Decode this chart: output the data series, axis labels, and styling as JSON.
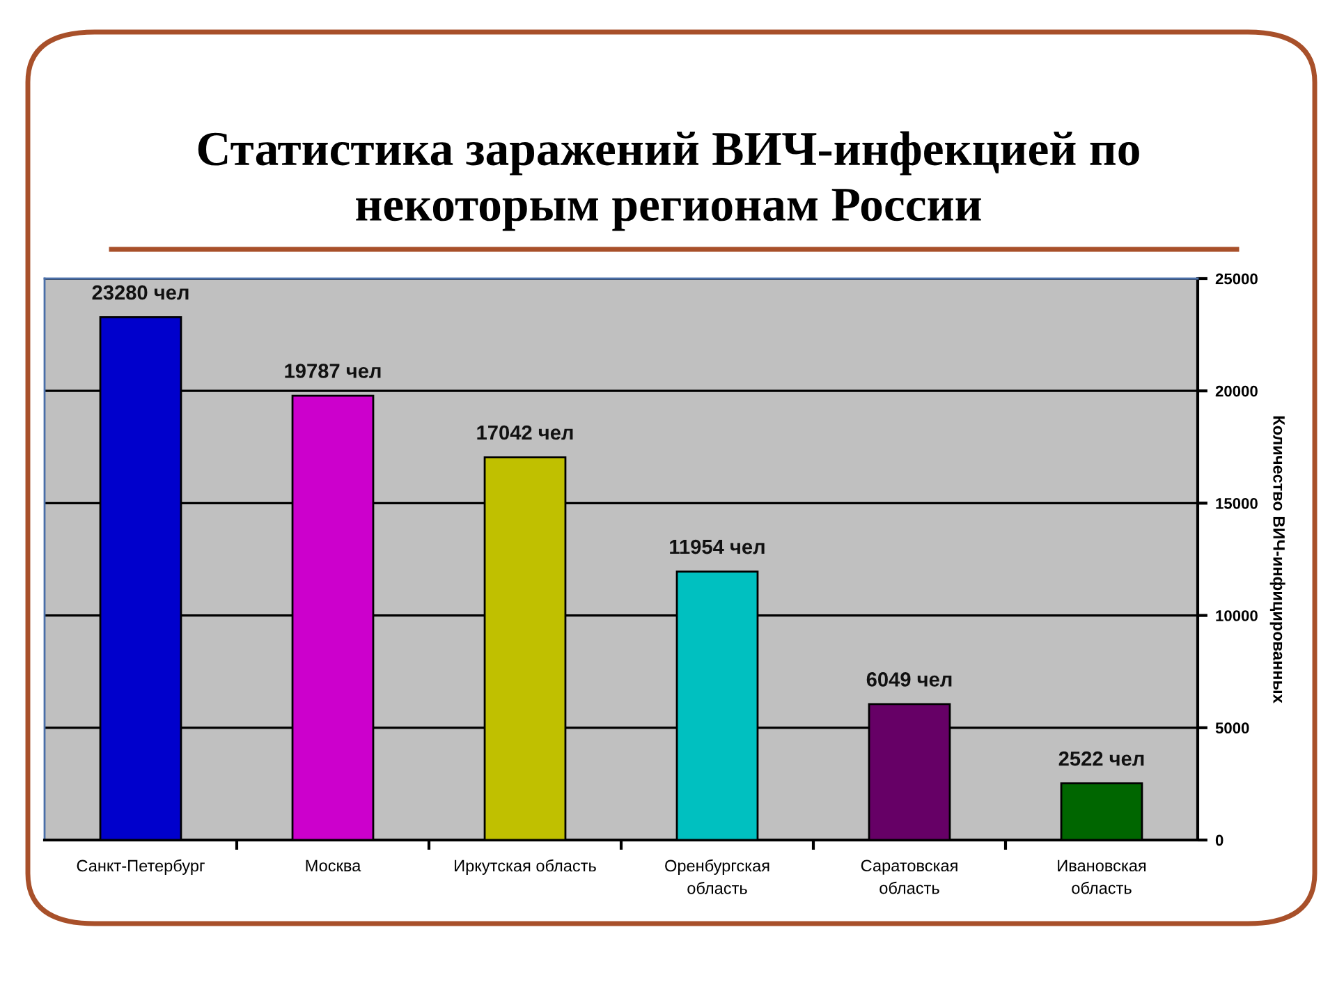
{
  "chart_data": {
    "type": "bar",
    "title": "Статистика заражений ВИЧ-инфекцией по\nнекоторым регионам России",
    "ylabel": "Количество ВИЧ-инфицированных",
    "categories": [
      "Санкт-Петербург",
      "Москва",
      "Иркутская область",
      "Оренбургская\nобласть",
      "Саратовская\nобласть",
      "Ивановская\nобласть"
    ],
    "values": [
      23280,
      19787,
      17042,
      11954,
      6049,
      2522
    ],
    "colors": [
      "#0000cc",
      "#cc00cc",
      "#c0c000",
      "#00c0c0",
      "#660066",
      "#006600"
    ],
    "value_labels": [
      "23280 чел",
      "19787 чел",
      "17042 чел",
      "11954 чел",
      "6049 чел",
      "2522 чел"
    ],
    "ylim": [
      0,
      25000
    ],
    "yticks": [
      0,
      5000,
      10000,
      15000,
      20000,
      25000
    ],
    "grid": "y"
  }
}
